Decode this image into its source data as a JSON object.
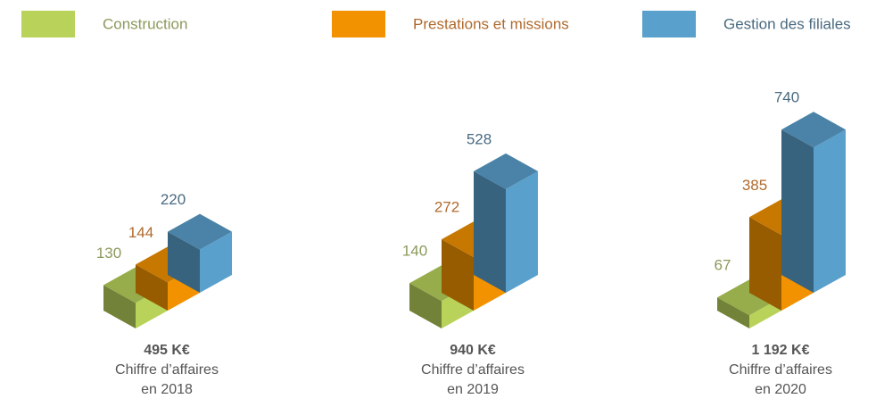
{
  "chart_data": {
    "type": "bar3d",
    "categories": [
      "en 2018",
      "en 2019",
      "en 2020"
    ],
    "totals": [
      "495 K€",
      "940 K€",
      "1 192 K€"
    ],
    "caption": "Chiffre d’affaires",
    "series": [
      {
        "name": "Construction",
        "color": "#b8d25a",
        "label_color": "#8a9a5b",
        "values": [
          130,
          140,
          67
        ]
      },
      {
        "name": "Prestations et missions",
        "color": "#f39200",
        "label_color": "#b06a2d",
        "values": [
          144,
          272,
          385
        ]
      },
      {
        "name": "Gestion des filiales",
        "color": "#5aa0cc",
        "label_color": "#4a6a80",
        "values": [
          220,
          528,
          740
        ]
      }
    ]
  }
}
